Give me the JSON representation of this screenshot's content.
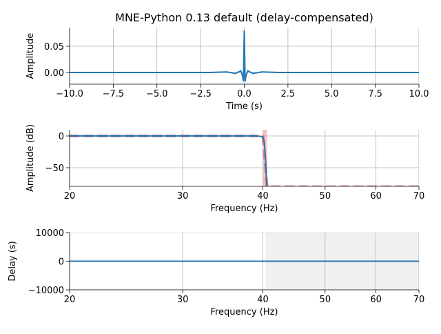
{
  "chart_data": [
    {
      "type": "line",
      "title": "MNE-Python 0.13 default (delay-compensated)",
      "xlabel": "Time (s)",
      "ylabel": "Amplitude",
      "xscale": "linear",
      "xlim": [
        -10,
        10
      ],
      "ylim": [
        -0.0224,
        0.0855
      ],
      "grid": true,
      "xticks": [
        {
          "value": -10,
          "label": "−10.0"
        },
        {
          "value": -7.5,
          "label": "−7.5"
        },
        {
          "value": -5,
          "label": "−5.0"
        },
        {
          "value": -2.5,
          "label": "−2.5"
        },
        {
          "value": 0,
          "label": "0.0"
        },
        {
          "value": 2.5,
          "label": "2.5"
        },
        {
          "value": 5,
          "label": "5.0"
        },
        {
          "value": 7.5,
          "label": "7.5"
        },
        {
          "value": 10,
          "label": "10.0"
        }
      ],
      "yticks": [
        {
          "value": 0,
          "label": "0.00"
        },
        {
          "value": 0.05,
          "label": "0.05"
        }
      ],
      "spans": [],
      "series": [
        {
          "color": "#1f77b4",
          "width": 2,
          "dash": false,
          "x": [
            -10,
            -2,
            -1,
            -0.5,
            -0.2,
            -0.1,
            -0.05,
            0,
            0.05,
            0.1,
            0.2,
            0.5,
            1,
            2,
            10
          ],
          "values": [
            0,
            0,
            0.001,
            -0.002,
            0.003,
            -0.006,
            -0.017,
            0.08,
            -0.017,
            -0.006,
            0.003,
            -0.002,
            0.001,
            0,
            0
          ]
        }
      ]
    },
    {
      "type": "line",
      "xlabel": "Frequency (Hz)",
      "ylabel": "Amplitude (dB)",
      "xscale": "log",
      "xlim": [
        20,
        70
      ],
      "ylim": [
        -79.3,
        9.8
      ],
      "grid": true,
      "xticks": [
        20,
        30,
        40,
        50,
        60,
        70
      ],
      "yticks": [
        {
          "value": -50,
          "label": "−50"
        },
        0
      ],
      "spans": [
        {
          "x": [
            40,
            40.6
          ],
          "color": "#f5c2c2"
        }
      ],
      "series": [
        {
          "color": "#f08080",
          "width": 4,
          "dash": true,
          "x": [
            20,
            40,
            40.6,
            70
          ],
          "values": [
            0,
            0,
            -80,
            -80
          ]
        },
        {
          "color": "#1f77b4",
          "width": 2,
          "dash": false,
          "x": [
            20,
            30,
            39,
            40,
            40.2,
            40.4,
            40.6
          ],
          "values": [
            0,
            0,
            0,
            -1,
            -10,
            -40,
            -90
          ]
        }
      ]
    },
    {
      "type": "line",
      "xlabel": "Frequency (Hz)",
      "ylabel": "Delay (s)",
      "xscale": "log",
      "xlim": [
        20,
        70
      ],
      "ylim": [
        -10000,
        10000
      ],
      "grid": true,
      "xticks": [
        20,
        30,
        40,
        50,
        60,
        70
      ],
      "yticks": [
        {
          "value": -10000,
          "label": "−10000"
        },
        0,
        10000
      ],
      "spans": [
        {
          "x": [
            40.4,
            70
          ],
          "color": "#f0f0f0"
        }
      ],
      "series": [
        {
          "color": "#1f77b4",
          "width": 2,
          "dash": false,
          "x": [
            20,
            70
          ],
          "values": [
            0,
            0
          ]
        }
      ]
    }
  ]
}
